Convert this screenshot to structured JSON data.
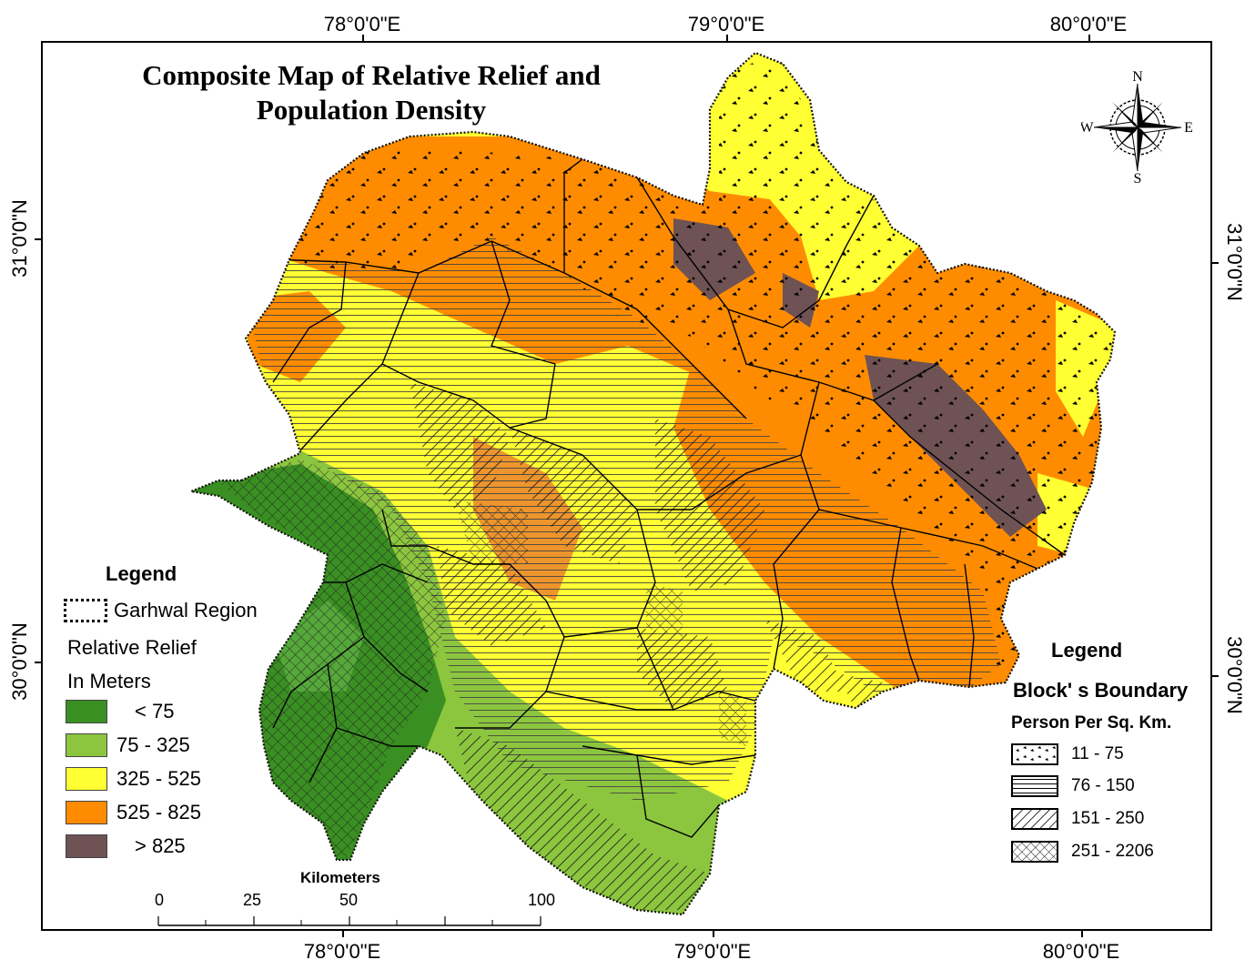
{
  "title_line1": "Composite Map of Relative Relief and",
  "title_line2": "Population Density",
  "coords": {
    "top": [
      "78°0'0\"E",
      "79°0'0\"E",
      "80°0'0\"E"
    ],
    "bottom": [
      "78°0'0\"E",
      "79°0'0\"E",
      "80°0'0\"E"
    ],
    "left": [
      "31°0'0\"N",
      "30°0'0\"N"
    ],
    "right": [
      "31°0'0\"N",
      "30°0'0\"N"
    ]
  },
  "legend_left": {
    "heading": "Legend",
    "region_label": "Garhwal Region",
    "relief_label_1": "Relative Relief",
    "relief_label_2": "In Meters",
    "classes": [
      {
        "label": "< 75",
        "color": "#3a8f22"
      },
      {
        "label": "75 - 325",
        "color": "#8cc63f"
      },
      {
        "label": "325 - 525",
        "color": "#ffff33"
      },
      {
        "label": "525 - 825",
        "color": "#ff8c00"
      },
      {
        "label": "> 825",
        "color": "#6e5254"
      }
    ]
  },
  "legend_right": {
    "heading": "Legend",
    "boundary_label": "Block' s Boundary",
    "density_label": "Person Per Sq. Km.",
    "classes": [
      {
        "label": "11 - 75",
        "pattern": "dots"
      },
      {
        "label": "76 - 150",
        "pattern": "horizontal-lines"
      },
      {
        "label": "151 - 250",
        "pattern": "diagonal-lines"
      },
      {
        "label": "251 - 2206",
        "pattern": "crosshatch"
      }
    ]
  },
  "compass": {
    "n": "N",
    "s": "S",
    "e": "E",
    "w": "W"
  },
  "scale": {
    "unit": "Kilometers",
    "ticks": [
      "0",
      "25",
      "50",
      "100"
    ]
  }
}
